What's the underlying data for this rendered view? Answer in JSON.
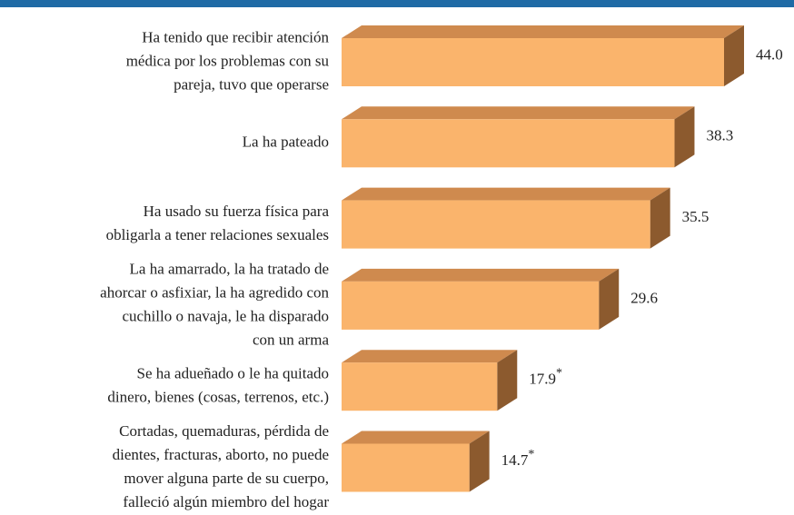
{
  "chart_data": {
    "type": "bar3d",
    "categories": [
      [
        "Ha tenido que recibir atención",
        "médica por los problemas con su",
        "pareja, tuvo que operarse"
      ],
      [
        "La ha pateado"
      ],
      [
        "Ha usado su fuerza física para",
        "obligarla a tener relaciones sexuales"
      ],
      [
        "La ha amarrado, la ha tratado de",
        "ahorcar o asfixiar, la ha agredido con",
        "cuchillo o navaja, le ha disparado",
        "con un arma"
      ],
      [
        "Se ha adueñado o le ha quitado",
        "dinero, bienes (cosas, terrenos, etc.)"
      ],
      [
        "Cortadas, quemaduras, pérdida de",
        "dientes, fracturas, aborto, no puede",
        "mover alguna parte de su cuerpo,",
        "falleció algún miembro del hogar"
      ]
    ],
    "values": [
      44.0,
      38.3,
      35.5,
      29.6,
      17.9,
      14.7
    ],
    "value_labels": [
      "44.0",
      "38.3",
      "35.5",
      "29.6",
      "17.9*",
      "14.7*"
    ],
    "colors": {
      "front": "#fab46c",
      "top": "#cf8a4e",
      "side": "#8c5a2e"
    },
    "header_color": "#1f6aa5"
  }
}
